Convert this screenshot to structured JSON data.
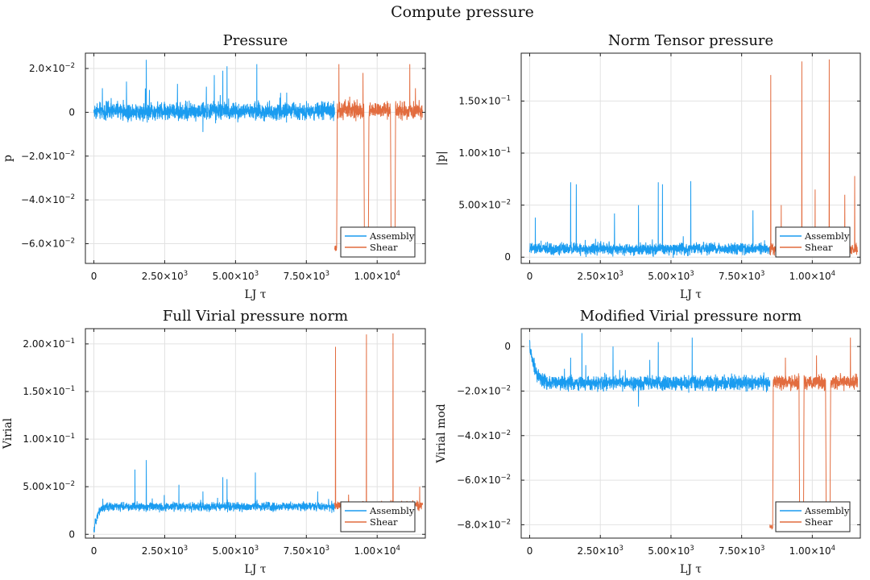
{
  "figure": {
    "title": "Compute pressure"
  },
  "colors": {
    "assembly": "#1a9cf0",
    "shear": "#e26c3f"
  },
  "chart_data": [
    {
      "id": "pressure",
      "type": "line",
      "title": "Pressure",
      "xlabel": "LJ τ",
      "ylabel": "p",
      "xlim": [
        -300,
        11700
      ],
      "ylim": [
        -0.069,
        0.027
      ],
      "xticks": [
        {
          "v": 0,
          "base": "0",
          "exp": ""
        },
        {
          "v": 2500,
          "base": "2.50×10",
          "exp": "3"
        },
        {
          "v": 5000,
          "base": "5.00×10",
          "exp": "3"
        },
        {
          "v": 7500,
          "base": "7.50×10",
          "exp": "3"
        },
        {
          "v": 10000,
          "base": "1.00×10",
          "exp": "4"
        }
      ],
      "yticks": [
        {
          "v": 0.02,
          "base": "2.0×10",
          "exp": "−2"
        },
        {
          "v": 0,
          "base": "0",
          "exp": ""
        },
        {
          "v": -0.02,
          "base": "−2.0×10",
          "exp": "−2"
        },
        {
          "v": -0.04,
          "base": "−4.0×10",
          "exp": "−2"
        },
        {
          "v": -0.06,
          "base": "−6.0×10",
          "exp": "−2"
        }
      ],
      "grid": true,
      "legend": "bottom-right",
      "series": [
        {
          "name": "Assembly",
          "color": "#1a9cf0",
          "x_range": [
            0,
            8500
          ],
          "baseline": 0.0005,
          "noise": 0.0035,
          "spikes": [
            [
              1850,
              0.024
            ],
            [
              4550,
              0.019
            ],
            [
              4700,
              0.021
            ],
            [
              5750,
              0.022
            ],
            [
              2950,
              0.013
            ],
            [
              3850,
              -0.009
            ],
            [
              4250,
              0.017
            ],
            [
              300,
              0.011
            ],
            [
              1150,
              0.014
            ]
          ]
        },
        {
          "name": "Shear",
          "color": "#e26c3f",
          "x_range": [
            8500,
            11600
          ],
          "baseline": 0.0008,
          "noise": 0.0035,
          "spikes": [
            [
              8650,
              0.022
            ],
            [
              9500,
              0.018
            ],
            [
              10500,
              0.015
            ],
            [
              11150,
              0.022
            ],
            [
              11350,
              0.011
            ]
          ],
          "dips": [
            [
              8500,
              -0.062
            ],
            [
              9620,
              -0.059
            ],
            [
              10560,
              -0.058
            ]
          ]
        }
      ]
    },
    {
      "id": "norm",
      "type": "line",
      "title": "Norm Tensor pressure",
      "xlabel": "LJ τ",
      "ylabel": "|p|",
      "xlim": [
        -300,
        11700
      ],
      "ylim": [
        -0.006,
        0.196
      ],
      "xticks": [
        {
          "v": 0,
          "base": "0",
          "exp": ""
        },
        {
          "v": 2500,
          "base": "2.50×10",
          "exp": "3"
        },
        {
          "v": 5000,
          "base": "5.00×10",
          "exp": "3"
        },
        {
          "v": 7500,
          "base": "7.50×10",
          "exp": "3"
        },
        {
          "v": 10000,
          "base": "1.00×10",
          "exp": "4"
        }
      ],
      "yticks": [
        {
          "v": 0.15,
          "base": "1.50×10",
          "exp": "−1"
        },
        {
          "v": 0.1,
          "base": "1.00×10",
          "exp": "−1"
        },
        {
          "v": 0.05,
          "base": "5.00×10",
          "exp": "−2"
        },
        {
          "v": 0,
          "base": "0",
          "exp": ""
        }
      ],
      "grid": true,
      "legend": "bottom-right",
      "series": [
        {
          "name": "Assembly",
          "color": "#1a9cf0",
          "x_range": [
            0,
            8500
          ],
          "baseline": 0.008,
          "noise": 0.005,
          "spikes": [
            [
              200,
              0.038
            ],
            [
              1450,
              0.072
            ],
            [
              1650,
              0.07
            ],
            [
              3000,
              0.042
            ],
            [
              4550,
              0.072
            ],
            [
              4700,
              0.07
            ],
            [
              5700,
              0.073
            ],
            [
              3850,
              0.05
            ],
            [
              7900,
              0.045
            ]
          ]
        },
        {
          "name": "Shear",
          "color": "#e26c3f",
          "x_range": [
            8500,
            11600
          ],
          "baseline": 0.008,
          "noise": 0.005,
          "spikes": [
            [
              8530,
              0.175
            ],
            [
              9630,
              0.188
            ],
            [
              10600,
              0.19
            ],
            [
              11500,
              0.078
            ],
            [
              8900,
              0.05
            ],
            [
              10100,
              0.065
            ],
            [
              11150,
              0.06
            ]
          ]
        }
      ]
    },
    {
      "id": "full-virial",
      "type": "line",
      "title": "Full Virial pressure norm",
      "xlabel": "LJ τ",
      "ylabel": "Virial",
      "xlim": [
        -300,
        11700
      ],
      "ylim": [
        -0.004,
        0.216
      ],
      "xticks": [
        {
          "v": 0,
          "base": "0",
          "exp": ""
        },
        {
          "v": 2500,
          "base": "2.50×10",
          "exp": "3"
        },
        {
          "v": 5000,
          "base": "5.00×10",
          "exp": "3"
        },
        {
          "v": 7500,
          "base": "7.50×10",
          "exp": "3"
        },
        {
          "v": 10000,
          "base": "1.00×10",
          "exp": "4"
        }
      ],
      "yticks": [
        {
          "v": 0.2,
          "base": "2.00×10",
          "exp": "−1"
        },
        {
          "v": 0.15,
          "base": "1.50×10",
          "exp": "−1"
        },
        {
          "v": 0.1,
          "base": "1.00×10",
          "exp": "−1"
        },
        {
          "v": 0.05,
          "base": "5.00×10",
          "exp": "−2"
        },
        {
          "v": 0,
          "base": "0",
          "exp": ""
        }
      ],
      "grid": true,
      "legend": "bottom-right",
      "series": [
        {
          "name": "Assembly",
          "color": "#1a9cf0",
          "x_range": [
            0,
            8500
          ],
          "baseline": 0.029,
          "noise": 0.004,
          "ramp": [
            0,
            450,
            0.002
          ],
          "spikes": [
            [
              1450,
              0.068
            ],
            [
              1850,
              0.078
            ],
            [
              3000,
              0.052
            ],
            [
              4550,
              0.06
            ],
            [
              4700,
              0.058
            ],
            [
              5700,
              0.065
            ],
            [
              3850,
              0.045
            ],
            [
              7900,
              0.045
            ]
          ]
        },
        {
          "name": "Shear",
          "color": "#e26c3f",
          "x_range": [
            8500,
            11600
          ],
          "baseline": 0.03,
          "noise": 0.004,
          "spikes": [
            [
              8530,
              0.197
            ],
            [
              9620,
              0.21
            ],
            [
              10560,
              0.211
            ],
            [
              11500,
              0.05
            ]
          ]
        }
      ]
    },
    {
      "id": "modified-virial",
      "type": "line",
      "title": "Modified Virial pressure norm",
      "xlabel": "LJ τ",
      "ylabel": "Virial mod",
      "xlim": [
        -300,
        11700
      ],
      "ylim": [
        -0.086,
        0.008
      ],
      "xticks": [
        {
          "v": 0,
          "base": "0",
          "exp": ""
        },
        {
          "v": 2500,
          "base": "2.50×10",
          "exp": "3"
        },
        {
          "v": 5000,
          "base": "5.00×10",
          "exp": "3"
        },
        {
          "v": 7500,
          "base": "7.50×10",
          "exp": "3"
        },
        {
          "v": 10000,
          "base": "1.00×10",
          "exp": "4"
        }
      ],
      "yticks": [
        {
          "v": 0,
          "base": "0",
          "exp": ""
        },
        {
          "v": -0.02,
          "base": "−2.0×10",
          "exp": "−2"
        },
        {
          "v": -0.04,
          "base": "−4.0×10",
          "exp": "−2"
        },
        {
          "v": -0.06,
          "base": "−6.0×10",
          "exp": "−2"
        },
        {
          "v": -0.08,
          "base": "−8.0×10",
          "exp": "−2"
        }
      ],
      "grid": true,
      "legend": "bottom-right",
      "series": [
        {
          "name": "Assembly",
          "color": "#1a9cf0",
          "x_range": [
            0,
            8500
          ],
          "baseline": -0.0165,
          "noise": 0.0028,
          "ramp": [
            0,
            800,
            0.0
          ],
          "spikes": [
            [
              1850,
              0.006
            ],
            [
              2950,
              0.0
            ],
            [
              4550,
              0.002
            ],
            [
              5750,
              0.004
            ],
            [
              4250,
              -0.006
            ],
            [
              3850,
              -0.027
            ],
            [
              1450,
              -0.005
            ]
          ]
        },
        {
          "name": "Shear",
          "color": "#e26c3f",
          "x_range": [
            8500,
            11600
          ],
          "baseline": -0.016,
          "noise": 0.0028,
          "spikes": [
            [
              11350,
              0.004
            ],
            [
              10150,
              -0.004
            ],
            [
              9050,
              -0.005
            ]
          ],
          "dips": [
            [
              8530,
              -0.081
            ],
            [
              9620,
              -0.073
            ],
            [
              10560,
              -0.071
            ]
          ]
        }
      ]
    }
  ]
}
